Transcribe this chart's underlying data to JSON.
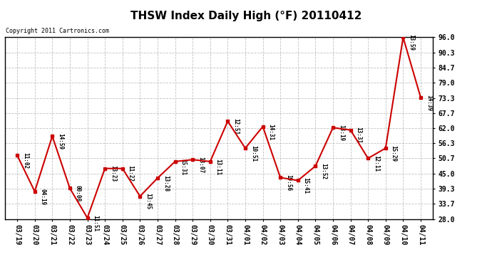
{
  "title": "THSW Index Daily High (°F) 20110412",
  "copyright": "Copyright 2011 Cartronics.com",
  "x_labels": [
    "03/19",
    "03/20",
    "03/21",
    "03/22",
    "03/23",
    "03/24",
    "03/25",
    "03/26",
    "03/27",
    "03/28",
    "03/29",
    "03/30",
    "03/31",
    "04/01",
    "04/02",
    "04/03",
    "04/04",
    "04/05",
    "04/06",
    "04/07",
    "04/08",
    "04/09",
    "04/10",
    "04/11"
  ],
  "y_values": [
    51.8,
    38.3,
    59.0,
    39.5,
    28.4,
    46.9,
    46.9,
    36.5,
    43.3,
    49.5,
    50.2,
    49.5,
    64.6,
    54.5,
    62.6,
    43.5,
    42.4,
    47.8,
    62.2,
    61.3,
    50.7,
    54.5,
    96.0,
    73.5
  ],
  "point_labels": [
    "11:02",
    "04:19",
    "14:59",
    "00:00",
    "11:51",
    "13:23",
    "11:22",
    "13:45",
    "13:28",
    "15:31",
    "13:07",
    "13:11",
    "12:51",
    "10:51",
    "14:31",
    "19:56",
    "15:41",
    "13:52",
    "13:19",
    "13:31",
    "12:11",
    "15:29",
    "13:59",
    "14:39"
  ],
  "y_min": 28.0,
  "y_max": 96.0,
  "y_ticks": [
    28.0,
    33.7,
    39.3,
    45.0,
    50.7,
    56.3,
    62.0,
    67.7,
    73.3,
    79.0,
    84.7,
    90.3,
    96.0
  ],
  "line_color": "#cc0000",
  "marker_color": "#cc0000",
  "background_color": "#ffffff",
  "grid_color": "#bbbbbb",
  "title_fontsize": 11,
  "tick_fontsize": 7,
  "label_fontsize": 5.5
}
